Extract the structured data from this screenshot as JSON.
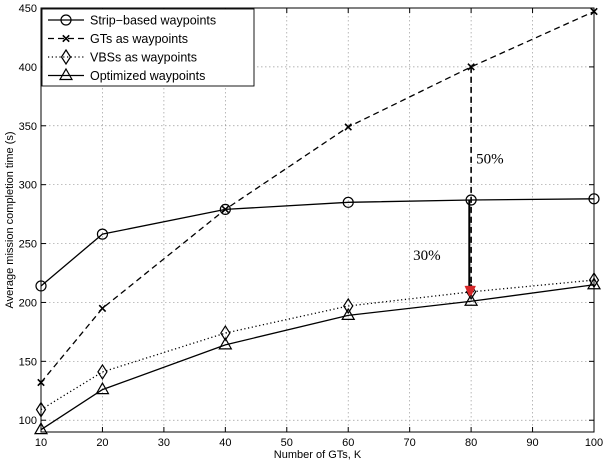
{
  "chart_data": {
    "type": "line",
    "xlabel": "Number of GTs, K",
    "ylabel": "Average mission completion time (s)",
    "xlim": [
      10,
      100
    ],
    "ylim": [
      90,
      450
    ],
    "xticks": [
      10,
      20,
      30,
      40,
      50,
      60,
      70,
      80,
      90,
      100
    ],
    "yticks": [
      100,
      150,
      200,
      250,
      300,
      350,
      400,
      450
    ],
    "grid": true,
    "legend": "top-left",
    "series": [
      {
        "name": "Strip−based waypoints",
        "marker": "circle",
        "line_style": "solid",
        "color": "#000000",
        "x": [
          10,
          20,
          40,
          60,
          80,
          100
        ],
        "y": [
          214,
          258,
          279,
          285,
          287,
          288
        ]
      },
      {
        "name": "GTs as waypoints",
        "marker": "x",
        "line_style": "dashed",
        "color": "#000000",
        "x": [
          10,
          20,
          40,
          60,
          80,
          100
        ],
        "y": [
          132,
          195,
          279,
          349,
          400,
          447
        ]
      },
      {
        "name": "VBSs as waypoints",
        "marker": "diamond",
        "line_style": "dotted",
        "color": "#000000",
        "x": [
          10,
          20,
          40,
          60,
          80,
          100
        ],
        "y": [
          109,
          141,
          174,
          197,
          209,
          219
        ]
      },
      {
        "name": "Optimized waypoints",
        "marker": "triangle",
        "line_style": "solid",
        "color": "#000000",
        "x": [
          10,
          20,
          40,
          60,
          80,
          100
        ],
        "y": [
          92,
          126,
          164,
          189,
          201,
          215
        ]
      }
    ],
    "annotations": [
      {
        "text": "50%",
        "x": 80,
        "y_from": 400,
        "y_to": 206,
        "arrow_style": "dashed",
        "label_y": 318
      },
      {
        "text": "30%",
        "x": 80,
        "y_from": 287,
        "y_to": 206,
        "arrow_style": "solid",
        "label_y": 236
      }
    ],
    "arrow_color": "#000000",
    "arrowhead_color": "#d62728"
  }
}
